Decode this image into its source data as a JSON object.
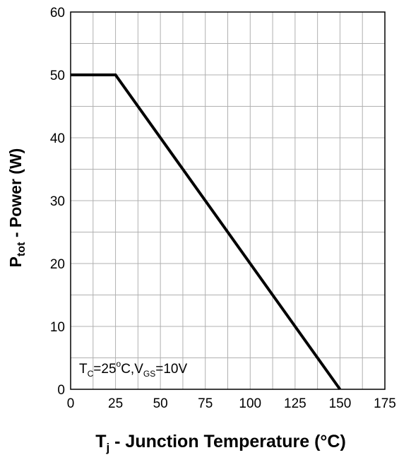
{
  "chart_data": {
    "type": "line",
    "xlabel": {
      "main": "T",
      "sub": "j",
      "rest": " - Junction Temperature (°C)"
    },
    "ylabel": {
      "main": "P",
      "sub": "tot",
      "rest": " - Power (W)"
    },
    "xlim": [
      0,
      175
    ],
    "ylim": [
      0,
      60
    ],
    "x_ticks": [
      0,
      25,
      50,
      75,
      100,
      125,
      150,
      175
    ],
    "y_ticks": [
      0,
      10,
      20,
      30,
      40,
      50,
      60
    ],
    "x_minor_step": 12.5,
    "y_minor_step": 5,
    "grid": true,
    "series": [
      {
        "x": [
          0,
          25,
          150
        ],
        "y": [
          50,
          50,
          0
        ]
      }
    ],
    "annotation": {
      "parts": [
        {
          "text": "T"
        },
        {
          "text": "C",
          "sub": true
        },
        {
          "text": "=25"
        },
        {
          "text": "o",
          "sup": true
        },
        {
          "text": "C,V"
        },
        {
          "text": "GS",
          "sub": true
        },
        {
          "text": "=10V"
        }
      ]
    },
    "line_color": "#000000",
    "grid_color": "#b0b0b0"
  }
}
